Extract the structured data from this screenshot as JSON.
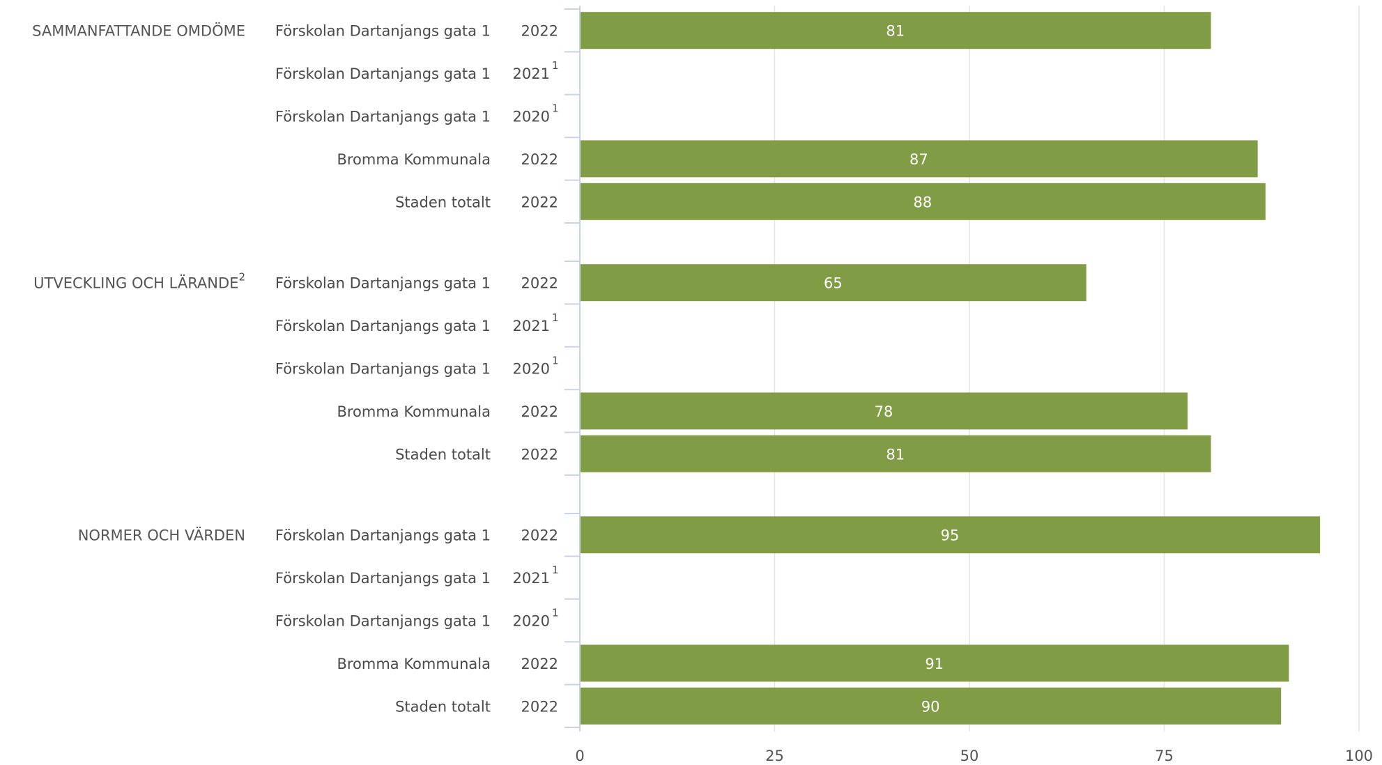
{
  "chart_data": {
    "type": "bar",
    "orientation": "horizontal",
    "xlim": [
      0,
      100
    ],
    "xticks": [
      "0",
      "25",
      "50",
      "75",
      "100"
    ],
    "grid": true,
    "bar_color": "#809c44",
    "gridline_color": "#e3e3e3",
    "axis_color": "#c9d3e6",
    "groups": [
      {
        "label": "SAMMANFATTANDE OMDÖME",
        "label_sup": "",
        "rows": [
          {
            "label": "Förskolan Dartanjangs gata 1",
            "year": "2022",
            "year_sup": "",
            "value": 81
          },
          {
            "label": "Förskolan Dartanjangs gata 1",
            "year": "2021",
            "year_sup": "1",
            "value": null
          },
          {
            "label": "Förskolan Dartanjangs gata 1",
            "year": "2020",
            "year_sup": "1",
            "value": null
          },
          {
            "label": "Bromma Kommunala",
            "year": "2022",
            "year_sup": "",
            "value": 87
          },
          {
            "label": "Staden totalt",
            "year": "2022",
            "year_sup": "",
            "value": 88
          }
        ]
      },
      {
        "label": "UTVECKLING OCH LÄRANDE",
        "label_sup": "2",
        "rows": [
          {
            "label": "Förskolan Dartanjangs gata 1",
            "year": "2022",
            "year_sup": "",
            "value": 65
          },
          {
            "label": "Förskolan Dartanjangs gata 1",
            "year": "2021",
            "year_sup": "1",
            "value": null
          },
          {
            "label": "Förskolan Dartanjangs gata 1",
            "year": "2020",
            "year_sup": "1",
            "value": null
          },
          {
            "label": "Bromma Kommunala",
            "year": "2022",
            "year_sup": "",
            "value": 78
          },
          {
            "label": "Staden totalt",
            "year": "2022",
            "year_sup": "",
            "value": 81
          }
        ]
      },
      {
        "label": "NORMER OCH VÄRDEN",
        "label_sup": "",
        "rows": [
          {
            "label": "Förskolan Dartanjangs gata 1",
            "year": "2022",
            "year_sup": "",
            "value": 95
          },
          {
            "label": "Förskolan Dartanjangs gata 1",
            "year": "2021",
            "year_sup": "1",
            "value": null
          },
          {
            "label": "Förskolan Dartanjangs gata 1",
            "year": "2020",
            "year_sup": "1",
            "value": null
          },
          {
            "label": "Bromma Kommunala",
            "year": "2022",
            "year_sup": "",
            "value": 91
          },
          {
            "label": "Staden totalt",
            "year": "2022",
            "year_sup": "",
            "value": 90
          }
        ]
      }
    ]
  }
}
